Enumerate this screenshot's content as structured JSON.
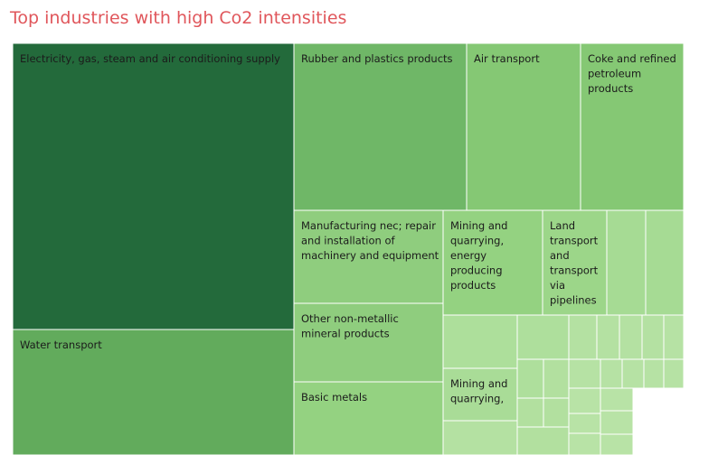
{
  "title": "Top industries with high Co2 intensities",
  "chart_data": {
    "type": "treemap",
    "title": "Top industries with high Co2 intensities",
    "items": [
      {
        "label": "Electricity, gas, steam and air conditioning supply",
        "lines": [
          "Electricity, gas, steam and air conditioning supply"
        ],
        "value": 100.0,
        "color": "#236a3b"
      },
      {
        "label": "Water transport",
        "lines": [
          "Water transport"
        ],
        "value": 28.4,
        "color": "#62ab5c"
      },
      {
        "label": "Rubber and plastics products",
        "lines": [
          "Rubber and plastics products"
        ],
        "value": 17.3,
        "color": "#6fb767"
      },
      {
        "label": "Air transport",
        "lines": [
          "Air transport"
        ],
        "value": 12.5,
        "color": "#85c874"
      },
      {
        "label": "Coke and refined petroleum products",
        "lines": [
          "Coke and refined",
          "petroleum",
          "products"
        ],
        "value": 11.3,
        "color": "#85c874"
      },
      {
        "label": "Manufacturing nec; repair and installation of machinery and equipment",
        "lines": [
          "Manufacturing nec; repair",
          "and installation of",
          "machinery and equipment"
        ],
        "value": 8.3,
        "color": "#8fcd7e"
      },
      {
        "label": "Other non-metallic mineral products",
        "lines": [
          "Other non-metallic",
          "mineral products"
        ],
        "value": 7.2,
        "color": "#8fcd7e"
      },
      {
        "label": "Basic metals",
        "lines": [
          "Basic metals"
        ],
        "value": 6.9,
        "color": "#94d281"
      },
      {
        "label": "Mining and quarrying, energy producing products",
        "lines": [
          "Mining and",
          "quarrying,",
          "energy",
          "producing",
          "products"
        ],
        "value": 6.0,
        "color": "#94d281"
      },
      {
        "label": "Land transport and transport via pipelines",
        "lines": [
          "Land",
          "transport",
          "and",
          "transport",
          "via",
          "pipelines"
        ],
        "value": 3.8,
        "color": "#9cd689"
      },
      {
        "label": "",
        "lines": [],
        "value": 2.2,
        "color": "#a6db94"
      },
      {
        "label": "",
        "lines": [],
        "value": 2.0,
        "color": "#a6db94"
      },
      {
        "label": "Mining and quarrying,",
        "lines": [
          "Mining and",
          "quarrying,"
        ],
        "value": 3.5,
        "color": "#a9dc97"
      },
      {
        "label": "",
        "lines": [],
        "value": 3.4,
        "color": "#add f9b"
      },
      {
        "label": "",
        "lines": [],
        "value": 2.3,
        "color": "#aedf9c"
      },
      {
        "label": "",
        "lines": [],
        "value": 2.3,
        "color": "#aedf9c"
      },
      {
        "label": "",
        "lines": [],
        "value": 2.1,
        "color": "#b2e09f"
      },
      {
        "label": "",
        "lines": [],
        "value": 1.9,
        "color": "#b2e09f"
      },
      {
        "label": "",
        "lines": [],
        "value": 1.8,
        "color": "#b2e09f"
      },
      {
        "label": "",
        "lines": [],
        "value": 1.6,
        "color": "#b2e09f"
      },
      {
        "label": "",
        "lines": [],
        "value": 1.2,
        "color": "#b4e1a2"
      },
      {
        "label": "",
        "lines": [],
        "value": 1.0,
        "color": "#b4e1a2"
      },
      {
        "label": "",
        "lines": [],
        "value": 0.9,
        "color": "#b4e1a2"
      },
      {
        "label": "",
        "lines": [],
        "value": 0.8,
        "color": "#b4e1a2"
      },
      {
        "label": "",
        "lines": [],
        "value": 0.8,
        "color": "#b4e1a2"
      },
      {
        "label": "",
        "lines": [],
        "value": 0.7,
        "color": "#b6e2a4"
      },
      {
        "label": "",
        "lines": [],
        "value": 0.7,
        "color": "#b6e2a4"
      },
      {
        "label": "",
        "lines": [],
        "value": 0.6,
        "color": "#b6e2a4"
      },
      {
        "label": "",
        "lines": [],
        "value": 0.6,
        "color": "#b6e2a4"
      },
      {
        "label": "",
        "lines": [],
        "value": 0.5,
        "color": "#b6e2a4"
      },
      {
        "label": "",
        "lines": [],
        "value": 0.5,
        "color": "#b6e2a4"
      },
      {
        "label": "",
        "lines": [],
        "value": 0.5,
        "color": "#b8e3a6"
      },
      {
        "label": "",
        "lines": [],
        "value": 0.4,
        "color": "#b8e3a6"
      },
      {
        "label": "",
        "lines": [],
        "value": 0.4,
        "color": "#b8e3a6"
      },
      {
        "label": "",
        "lines": [],
        "value": 0.4,
        "color": "#b8e3a6"
      },
      {
        "label": "",
        "lines": [],
        "value": 0.3,
        "color": "#b8e3a6"
      },
      {
        "label": "",
        "lines": [],
        "value": 0.3,
        "color": "#b8e3a6"
      }
    ]
  }
}
